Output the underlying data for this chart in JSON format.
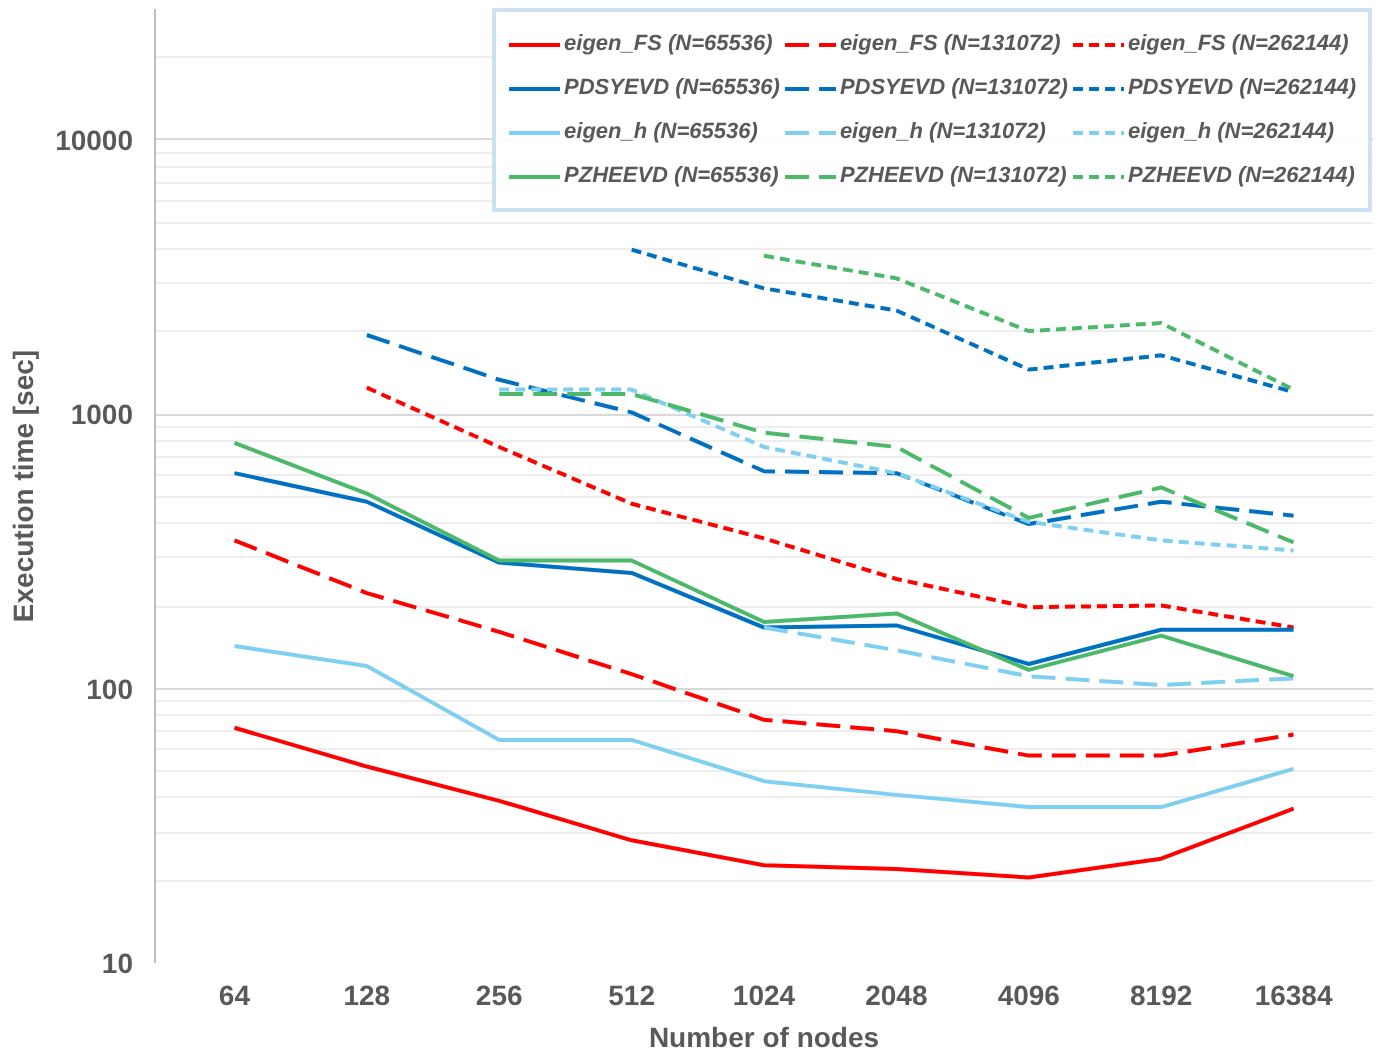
{
  "chart_data": {
    "type": "line",
    "xlabel": "Number of nodes",
    "ylabel": "Execution time [sec]",
    "categories": [
      "64",
      "128",
      "256",
      "512",
      "1024",
      "2048",
      "4096",
      "8192",
      "16384"
    ],
    "log": true,
    "grid": "y",
    "legend": "top right",
    "ylim": [
      10,
      30000
    ],
    "yticks": [
      10,
      100,
      1000,
      10000
    ],
    "series": [
      {
        "name": "eigen_FS (N=65536)",
        "color": "#ff0000",
        "line_style": "solid",
        "values": [
          72,
          52,
          39,
          28,
          22.7,
          22,
          20.5,
          24,
          36.5
        ]
      },
      {
        "name": "eigen_FS (N=131072)",
        "color": "#ff0000",
        "line_style": "dashed",
        "values": [
          347,
          223,
          161,
          113,
          77,
          70,
          57,
          57,
          68
        ]
      },
      {
        "name": "eigen_FS (N=262144)",
        "color": "#ff0000",
        "line_style": "dotted",
        "values": [
          null,
          1250,
          760,
          472,
          353,
          251,
          198,
          201,
          167
        ]
      },
      {
        "name": "PDSYEVD (N=65536)",
        "color": "#0070c0",
        "line_style": "solid",
        "values": [
          610,
          480,
          288,
          264,
          167,
          170,
          123,
          164,
          164
        ]
      },
      {
        "name": "PDSYEVD (N=131072)",
        "color": "#0070c0",
        "line_style": "dashed",
        "values": [
          null,
          1945,
          1336,
          1016,
          620,
          610,
          398,
          480,
          427
        ]
      },
      {
        "name": "PDSYEVD (N=262144)",
        "color": "#0070c0",
        "line_style": "dotted",
        "values": [
          null,
          null,
          null,
          3980,
          2877,
          2390,
          1455,
          1640,
          1205
        ]
      },
      {
        "name": "eigen_h (N=65536)",
        "color": "#7fd0f0",
        "line_style": "solid",
        "values": [
          143,
          121,
          65,
          65,
          46,
          41,
          37,
          37,
          51
        ]
      },
      {
        "name": "eigen_h (N=131072)",
        "color": "#7fd0f0",
        "line_style": "dashed",
        "values": [
          null,
          null,
          null,
          null,
          167,
          138,
          111,
          103,
          109
        ]
      },
      {
        "name": "eigen_h (N=262144)",
        "color": "#7fd0f0",
        "line_style": "dotted",
        "values": [
          null,
          null,
          1230,
          1230,
          760,
          610,
          405,
          347,
          319
        ]
      },
      {
        "name": "PZHEEVD (N=65536)",
        "color": "#4cb86a",
        "line_style": "solid",
        "values": [
          787,
          514,
          293,
          293,
          175,
          188,
          117,
          156,
          111
        ]
      },
      {
        "name": "PZHEEVD (N=131072)",
        "color": "#4cb86a",
        "line_style": "dashed",
        "values": [
          null,
          null,
          1186,
          1186,
          857,
          760,
          419,
          541,
          341
        ]
      },
      {
        "name": "PZHEEVD (N=262144)",
        "color": "#4cb86a",
        "line_style": "dotted",
        "values": [
          null,
          null,
          null,
          null,
          3780,
          3130,
          2010,
          2150,
          1230
        ]
      }
    ]
  }
}
